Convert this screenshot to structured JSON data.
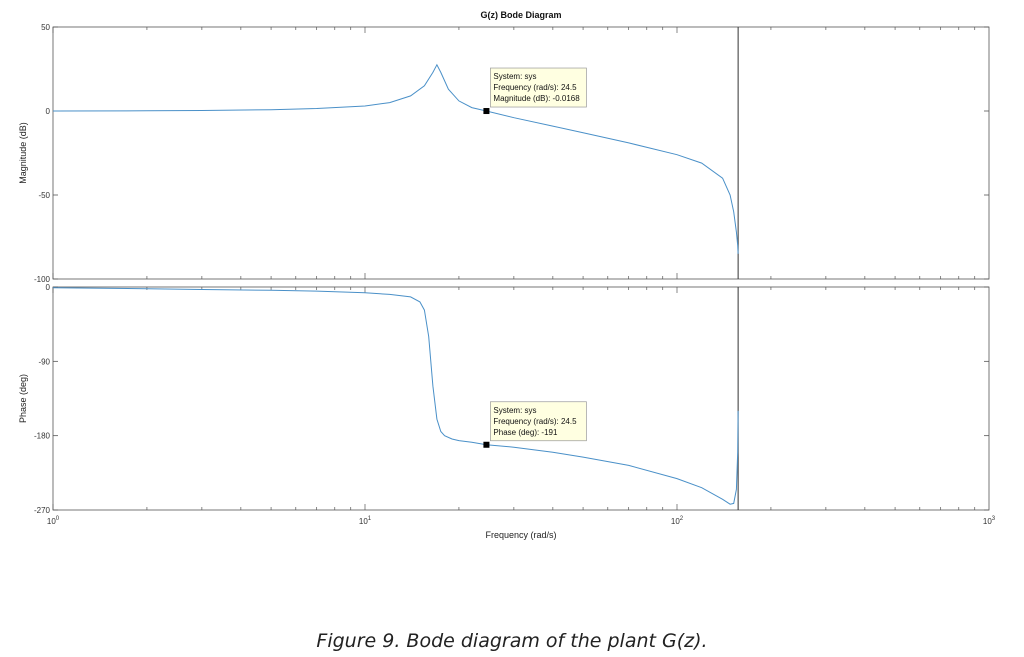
{
  "chart_data": {
    "type": "line",
    "title": "G(z) Bode Diagram",
    "xlabel": "Frequency  (rad/s)",
    "xscale": "log",
    "xlim": [
      1,
      1000
    ],
    "x_ticks": [
      1,
      10,
      100,
      1000
    ],
    "x_tick_labels": [
      {
        "base": "10",
        "exp": "0"
      },
      {
        "base": "10",
        "exp": "1"
      },
      {
        "base": "10",
        "exp": "2"
      },
      {
        "base": "10",
        "exp": "3"
      }
    ],
    "grid": false,
    "nyquist_frequency": 157,
    "line_color": "#4a90c8",
    "magnitude": {
      "ylabel": "Magnitude (dB)",
      "ylim": [
        -100,
        50
      ],
      "y_ticks": [
        50,
        0,
        -50,
        -100
      ],
      "x": [
        1,
        2,
        3,
        5,
        7,
        10,
        12,
        14,
        15.5,
        16.5,
        17,
        17.5,
        18.5,
        20,
        22,
        24.5,
        30,
        40,
        50,
        70,
        100,
        120,
        140,
        148,
        152,
        155,
        156.5,
        157
      ],
      "y": [
        0,
        0.1,
        0.3,
        0.8,
        1.5,
        3,
        5,
        9,
        15,
        23,
        27.5,
        23,
        13,
        6,
        2,
        -0.0168,
        -4,
        -9,
        -13,
        -19,
        -26,
        -31,
        -40,
        -50,
        -60,
        -72,
        -80,
        -85
      ]
    },
    "phase": {
      "ylabel": "Phase (deg)",
      "ylim": [
        -270,
        0
      ],
      "y_ticks": [
        0,
        -90,
        -180,
        -270
      ],
      "x": [
        1,
        2,
        3,
        5,
        7,
        10,
        12,
        14,
        15,
        15.5,
        16,
        16.5,
        17,
        17.5,
        18,
        19,
        20,
        22,
        24.5,
        30,
        40,
        50,
        70,
        100,
        120,
        140,
        148,
        152,
        155,
        156.5,
        157
      ],
      "y": [
        -1,
        -2,
        -3,
        -4,
        -5,
        -7,
        -9,
        -12,
        -18,
        -28,
        -60,
        -120,
        -160,
        -175,
        -180,
        -184,
        -186,
        -188,
        -191,
        -194,
        -200,
        -206,
        -216,
        -232,
        -243,
        -257,
        -263,
        -262,
        -245,
        -200,
        -150
      ]
    },
    "datatips": [
      {
        "panel": "magnitude",
        "x": 24.5,
        "y": -0.0168,
        "lines": [
          "System: sys",
          "Frequency (rad/s): 24.5",
          "Magnitude (dB): -0.0168"
        ]
      },
      {
        "panel": "phase",
        "x": 24.5,
        "y": -191,
        "lines": [
          "System: sys",
          "Frequency (rad/s): 24.5",
          "Phase (deg): -191"
        ]
      }
    ]
  },
  "caption": "Figure 9. Bode diagram of the plant G(z)."
}
